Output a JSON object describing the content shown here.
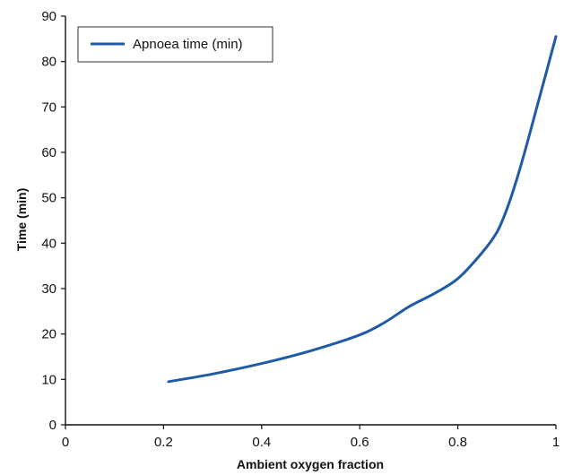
{
  "chart_data": {
    "type": "line",
    "xlabel": "Ambient oxygen fraction",
    "ylabel": "Time (min)",
    "xlim": [
      0,
      1
    ],
    "ylim": [
      0,
      90
    ],
    "x_ticks": [
      "0",
      "0.2",
      "0.4",
      "0.6",
      "0.8",
      "1"
    ],
    "y_ticks": [
      "0",
      "10",
      "20",
      "30",
      "40",
      "50",
      "60",
      "70",
      "80",
      "90"
    ],
    "legend_position": "top-left",
    "grid": false,
    "colors": {
      "series": "#1f5aa6",
      "axis": "#111111"
    },
    "series": [
      {
        "name": "Apnoea time (min)",
        "x": [
          0.21,
          0.3,
          0.4,
          0.5,
          0.6,
          0.65,
          0.7,
          0.75,
          0.8,
          0.85,
          0.88,
          0.9,
          0.92,
          0.94,
          0.96,
          0.98,
          1.0
        ],
        "y": [
          9.5,
          11.2,
          13.5,
          16.3,
          19.8,
          22.5,
          26.0,
          28.8,
          32.2,
          38.0,
          42.5,
          47.5,
          54.0,
          61.5,
          69.5,
          77.5,
          85.5
        ]
      }
    ]
  }
}
